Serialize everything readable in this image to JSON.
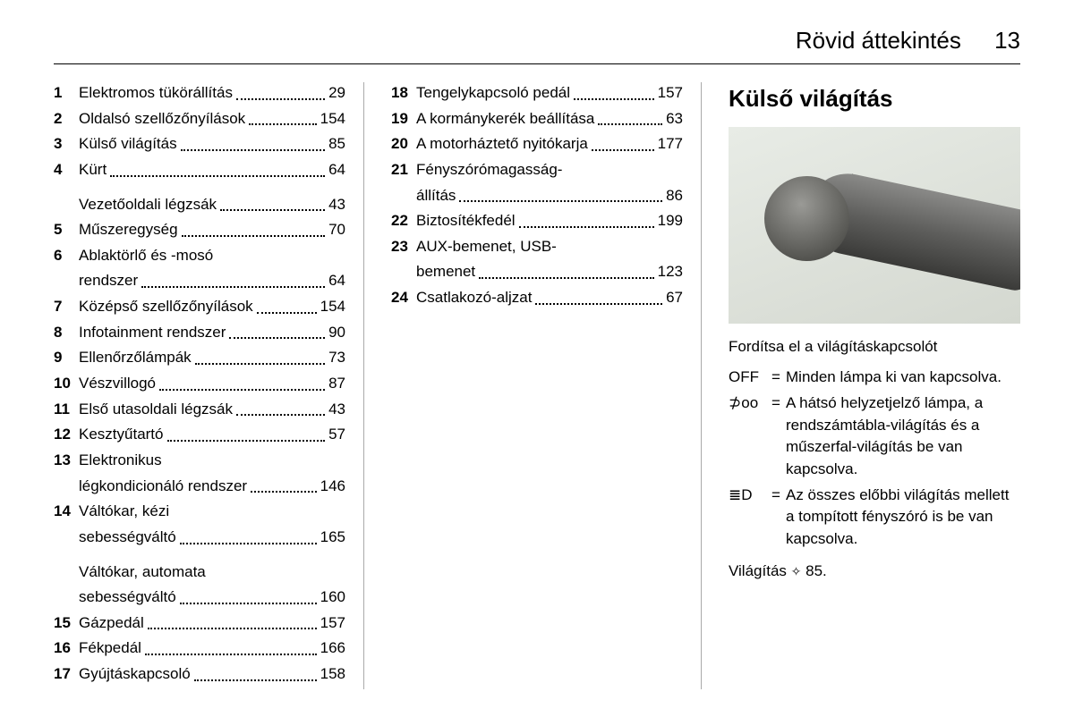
{
  "header": {
    "title": "Rövid áttekintés",
    "page": "13"
  },
  "toc": {
    "col1": [
      {
        "n": "1",
        "lines": [
          "Elektromos tükörállítás"
        ],
        "p": "29"
      },
      {
        "n": "2",
        "lines": [
          "Oldalsó szellőzőnyílások"
        ],
        "p": "154"
      },
      {
        "n": "3",
        "lines": [
          "Külső világítás"
        ],
        "p": "85"
      },
      {
        "n": "4",
        "lines": [
          "Kürt"
        ],
        "p": "64"
      },
      {
        "n": "",
        "lines": [
          "Vezetőoldali légzsák"
        ],
        "p": "43"
      },
      {
        "n": "5",
        "lines": [
          "Műszeregység"
        ],
        "p": "70"
      },
      {
        "n": "6",
        "lines": [
          "Ablaktörlő és -mosó",
          "rendszer"
        ],
        "p": "64"
      },
      {
        "n": "7",
        "lines": [
          "Középső szellőzőnyílások"
        ],
        "p": "154"
      },
      {
        "n": "8",
        "lines": [
          "Infotainment rendszer"
        ],
        "p": "90"
      },
      {
        "n": "9",
        "lines": [
          "Ellenőrzőlámpák"
        ],
        "p": "73"
      },
      {
        "n": "10",
        "lines": [
          "Vészvillogó"
        ],
        "p": "87"
      },
      {
        "n": "11",
        "lines": [
          "Első utasoldali légzsák"
        ],
        "p": "43"
      },
      {
        "n": "12",
        "lines": [
          "Kesztyűtartó"
        ],
        "p": "57"
      },
      {
        "n": "13",
        "lines": [
          "Elektronikus",
          "légkondicionáló rendszer"
        ],
        "p": "146"
      },
      {
        "n": "14",
        "lines": [
          "Váltókar, kézi",
          "sebességváltó"
        ],
        "p": "165"
      },
      {
        "n": "",
        "lines": [
          "Váltókar, automata",
          "sebességváltó"
        ],
        "p": "160"
      },
      {
        "n": "15",
        "lines": [
          "Gázpedál"
        ],
        "p": "157"
      },
      {
        "n": "16",
        "lines": [
          "Fékpedál"
        ],
        "p": "166"
      },
      {
        "n": "17",
        "lines": [
          "Gyújtáskapcsoló"
        ],
        "p": "158"
      }
    ],
    "col2": [
      {
        "n": "18",
        "lines": [
          "Tengelykapcsoló pedál"
        ],
        "p": "157"
      },
      {
        "n": "19",
        "lines": [
          "A kormánykerék beállítása"
        ],
        "p": "63"
      },
      {
        "n": "20",
        "lines": [
          "A motorháztető nyitókarja"
        ],
        "p": "177"
      },
      {
        "n": "21",
        "lines": [
          "Fényszórómagasság-",
          "állítás"
        ],
        "p": "86"
      },
      {
        "n": "22",
        "lines": [
          "Biztosítékfedél"
        ],
        "p": "199"
      },
      {
        "n": "23",
        "lines": [
          "AUX-bemenet, USB-",
          "bemenet"
        ],
        "p": "123"
      },
      {
        "n": "24",
        "lines": [
          "Csatlakozó-aljzat"
        ],
        "p": "67"
      }
    ]
  },
  "col3": {
    "heading": "Külső világítás",
    "instruction": "Fordítsa el a világításkapcsolót",
    "defs": [
      {
        "sym": "OFF",
        "text": "Minden lámpa ki van kapcsolva."
      },
      {
        "sym": "⊅oo",
        "text": "A hátsó helyzetjelző lámpa, a rendszámtábla-világítás és a műszerfal-világítás be van kapcsolva."
      },
      {
        "sym": "≣D",
        "text": "Az összes előbbi világítás mellett a tompított fényszóró is be van kapcsolva."
      }
    ],
    "ref_label": "Világítás",
    "ref_page": "85."
  }
}
